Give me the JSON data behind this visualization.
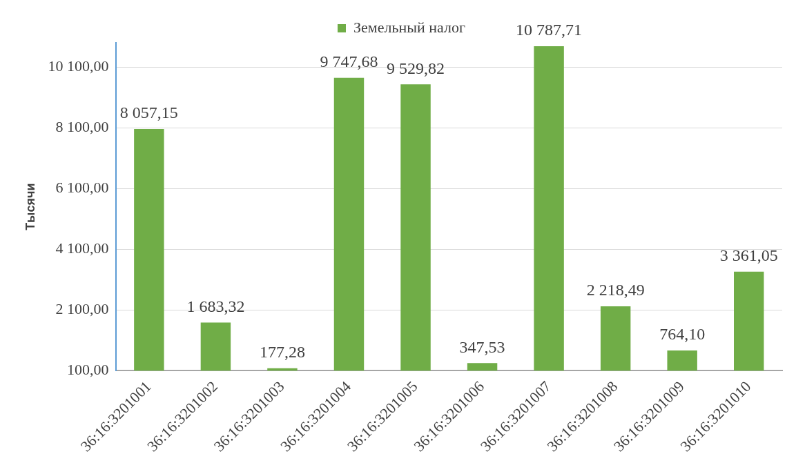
{
  "chart_data": {
    "type": "bar",
    "ylabel": "Тысячи",
    "categories": [
      "36:16:3201001",
      "36:16:3201002",
      "36:16:3201003",
      "36:16:3201004",
      "36:16:3201005",
      "36:16:3201006",
      "36:16:3201007",
      "36:16:3201008",
      "36:16:3201009",
      "36:16:3201010"
    ],
    "series": [
      {
        "name": "Земельный налог",
        "color": "#70ad47",
        "values": [
          8057.15,
          1683.32,
          177.28,
          9747.68,
          9529.82,
          347.53,
          10787.71,
          2218.49,
          764.1,
          3361.05
        ],
        "value_labels": [
          "8 057,15",
          "1 683,32",
          "177,28",
          "9 747,68",
          "9 529,82",
          "347,53",
          "10 787,71",
          "2 218,49",
          "764,10",
          "3 361,05"
        ]
      }
    ],
    "ylim": [
      100,
      10900
    ],
    "yticks": [
      {
        "value": 100,
        "label": "100,00"
      },
      {
        "value": 2100,
        "label": "2 100,00"
      },
      {
        "value": 4100,
        "label": "4 100,00"
      },
      {
        "value": 6100,
        "label": "6 100,00"
      },
      {
        "value": 8100,
        "label": "8 100,00"
      },
      {
        "value": 10100,
        "label": "10 100,00"
      }
    ],
    "grid": "y",
    "legend": "top"
  }
}
